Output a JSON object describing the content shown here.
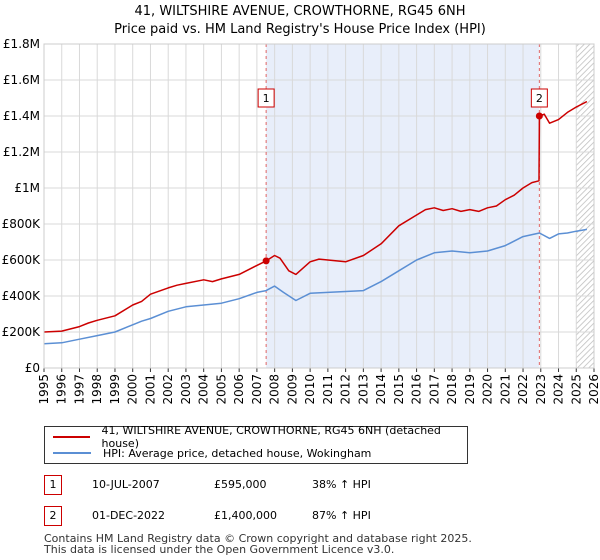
{
  "chart_data": {
    "type": "line",
    "title": "41, WILTSHIRE AVENUE, CROWTHORNE, RG45 6NH",
    "subtitle": "Price paid vs. HM Land Registry's House Price Index (HPI)",
    "xlim": [
      1995,
      2026
    ],
    "ylim": [
      0,
      1800000
    ],
    "y_ticks": [
      {
        "value": 0,
        "label": "£0"
      },
      {
        "value": 200000,
        "label": "£200K"
      },
      {
        "value": 400000,
        "label": "£400K"
      },
      {
        "value": 600000,
        "label": "£600K"
      },
      {
        "value": 800000,
        "label": "£800K"
      },
      {
        "value": 1000000,
        "label": "£1M"
      },
      {
        "value": 1200000,
        "label": "£1.2M"
      },
      {
        "value": 1400000,
        "label": "£1.4M"
      },
      {
        "value": 1600000,
        "label": "£1.6M"
      },
      {
        "value": 1800000,
        "label": "£1.8M"
      }
    ],
    "x_ticks": [
      "1995",
      "1996",
      "1997",
      "1998",
      "1999",
      "2000",
      "2001",
      "2002",
      "2003",
      "2004",
      "2005",
      "2006",
      "2007",
      "2008",
      "2009",
      "2010",
      "2011",
      "2012",
      "2013",
      "2014",
      "2015",
      "2016",
      "2017",
      "2018",
      "2019",
      "2020",
      "2021",
      "2022",
      "2023",
      "2024",
      "2025",
      "2026"
    ],
    "shaded_period": [
      2007.52,
      2022.92
    ],
    "hatched_from": 2025.0,
    "series": [
      {
        "name": "41, WILTSHIRE AVENUE, CROWTHORNE, RG45 6NH (detached house)",
        "color": "#cc0000",
        "x": [
          1995.0,
          1996.0,
          1997.0,
          1997.5,
          1998.0,
          1999.0,
          2000.0,
          2000.5,
          2001.0,
          2002.0,
          2002.5,
          2003.0,
          2004.0,
          2004.5,
          2005.0,
          2006.0,
          2007.0,
          2007.52,
          2008.0,
          2008.3,
          2008.8,
          2009.2,
          2010.0,
          2010.5,
          2011.0,
          2012.0,
          2013.0,
          2014.0,
          2015.0,
          2016.0,
          2016.5,
          2017.0,
          2017.5,
          2018.0,
          2018.5,
          2019.0,
          2019.5,
          2020.0,
          2020.5,
          2021.0,
          2021.5,
          2022.0,
          2022.5,
          2022.9,
          2022.92,
          2023.2,
          2023.5,
          2024.0,
          2024.5,
          2025.0,
          2025.6
        ],
        "values": [
          200000,
          205000,
          230000,
          250000,
          265000,
          290000,
          350000,
          370000,
          410000,
          445000,
          460000,
          470000,
          490000,
          480000,
          495000,
          520000,
          570000,
          595000,
          625000,
          610000,
          540000,
          520000,
          590000,
          605000,
          600000,
          590000,
          625000,
          690000,
          790000,
          850000,
          880000,
          890000,
          875000,
          885000,
          870000,
          880000,
          870000,
          890000,
          900000,
          935000,
          960000,
          1000000,
          1030000,
          1040000,
          1400000,
          1410000,
          1360000,
          1380000,
          1420000,
          1450000,
          1480000
        ]
      },
      {
        "name": "HPI: Average price, detached house, Wokingham",
        "color": "#5b8fd4",
        "x": [
          1995.0,
          1996.0,
          1997.0,
          1998.0,
          1999.0,
          2000.0,
          2000.5,
          2001.0,
          2002.0,
          2003.0,
          2004.0,
          2005.0,
          2006.0,
          2007.0,
          2007.52,
          2008.0,
          2008.5,
          2009.2,
          2010.0,
          2011.0,
          2012.0,
          2013.0,
          2014.0,
          2015.0,
          2016.0,
          2017.0,
          2018.0,
          2019.0,
          2020.0,
          2021.0,
          2022.0,
          2022.92,
          2023.5,
          2024.0,
          2024.5,
          2025.0,
          2025.6
        ],
        "values": [
          135000,
          140000,
          160000,
          180000,
          200000,
          240000,
          260000,
          275000,
          315000,
          340000,
          350000,
          360000,
          385000,
          420000,
          430000,
          455000,
          420000,
          375000,
          415000,
          420000,
          425000,
          430000,
          480000,
          540000,
          600000,
          640000,
          650000,
          640000,
          650000,
          680000,
          730000,
          750000,
          720000,
          745000,
          750000,
          760000,
          770000
        ]
      }
    ],
    "transactions": [
      {
        "id": "1",
        "date": "10-JUL-2007",
        "price": "£595,000",
        "hpi": "38% ↑ HPI",
        "x": 2007.52,
        "value": 595000,
        "marker_value": 1500000
      },
      {
        "id": "2",
        "date": "01-DEC-2022",
        "price": "£1,400,000",
        "hpi": "87% ↑ HPI",
        "x": 2022.92,
        "value": 1400000,
        "marker_value": 1500000
      }
    ]
  },
  "footer": {
    "line1": "Contains HM Land Registry data © Crown copyright and database right 2025.",
    "line2": "This data is licensed under the Open Government Licence v3.0."
  }
}
